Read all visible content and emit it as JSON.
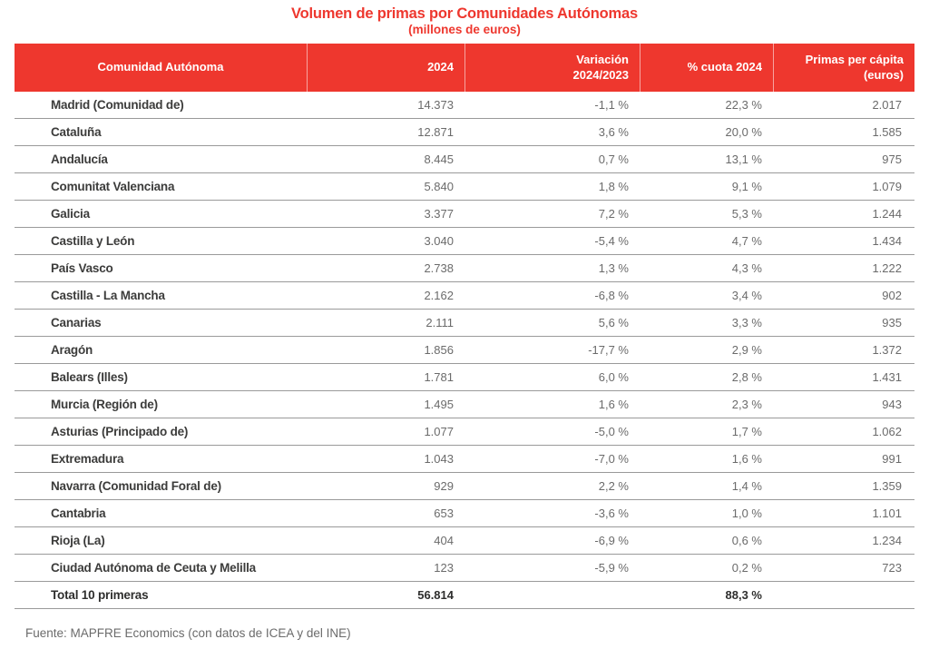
{
  "title": "Volumen de primas por Comunidades Autónomas",
  "subtitle": "(millones de euros)",
  "colors": {
    "accent_red": "#ee372e",
    "row_line": "#9a9a9a",
    "region_text": "#3c3c3b",
    "value_text": "#6b6b6b"
  },
  "header": {
    "col_region": "Comunidad Autónoma",
    "col_2024": "2024",
    "col_variation_l1": "Variación",
    "col_variation_l2": "2024/2023",
    "col_share": "% cuota 2024",
    "col_percapita_l1": "Primas per cápita",
    "col_percapita_l2": "(euros)"
  },
  "footer": "Fuente: MAPFRE Economics (con datos de ICEA y del INE)",
  "chart_data": {
    "type": "table",
    "title": "Volumen de primas por Comunidades Autónomas",
    "subtitle": "(millones de euros)",
    "columns": [
      "Comunidad Autónoma",
      "2024",
      "Variación 2024/2023",
      "% cuota 2024",
      "Primas per cápita (euros)"
    ],
    "rows": [
      {
        "region": "Madrid (Comunidad de)",
        "premiums_2024": "14.373",
        "variation": "-1,1 %",
        "share": "22,3 %",
        "per_capita": "2.017"
      },
      {
        "region": "Cataluña",
        "premiums_2024": "12.871",
        "variation": "3,6 %",
        "share": "20,0 %",
        "per_capita": "1.585"
      },
      {
        "region": "Andalucía",
        "premiums_2024": "8.445",
        "variation": "0,7 %",
        "share": "13,1 %",
        "per_capita": "975"
      },
      {
        "region": "Comunitat Valenciana",
        "premiums_2024": "5.840",
        "variation": "1,8 %",
        "share": "9,1 %",
        "per_capita": "1.079"
      },
      {
        "region": "Galicia",
        "premiums_2024": "3.377",
        "variation": "7,2 %",
        "share": "5,3 %",
        "per_capita": "1.244"
      },
      {
        "region": "Castilla y León",
        "premiums_2024": "3.040",
        "variation": "-5,4 %",
        "share": "4,7 %",
        "per_capita": "1.434"
      },
      {
        "region": "País Vasco",
        "premiums_2024": "2.738",
        "variation": "1,3 %",
        "share": "4,3 %",
        "per_capita": "1.222"
      },
      {
        "region": "Castilla - La Mancha",
        "premiums_2024": "2.162",
        "variation": "-6,8 %",
        "share": "3,4 %",
        "per_capita": "902"
      },
      {
        "region": "Canarias",
        "premiums_2024": "2.111",
        "variation": "5,6 %",
        "share": "3,3 %",
        "per_capita": "935"
      },
      {
        "region": "Aragón",
        "premiums_2024": "1.856",
        "variation": "-17,7 %",
        "share": "2,9 %",
        "per_capita": "1.372"
      },
      {
        "region": "Balears (Illes)",
        "premiums_2024": "1.781",
        "variation": "6,0 %",
        "share": "2,8 %",
        "per_capita": "1.431"
      },
      {
        "region": "Murcia (Región de)",
        "premiums_2024": "1.495",
        "variation": "1,6 %",
        "share": "2,3 %",
        "per_capita": "943"
      },
      {
        "region": "Asturias (Principado de)",
        "premiums_2024": "1.077",
        "variation": "-5,0 %",
        "share": "1,7 %",
        "per_capita": "1.062"
      },
      {
        "region": "Extremadura",
        "premiums_2024": "1.043",
        "variation": "-7,0 %",
        "share": "1,6 %",
        "per_capita": "991"
      },
      {
        "region": "Navarra (Comunidad Foral de)",
        "premiums_2024": "929",
        "variation": "2,2 %",
        "share": "1,4 %",
        "per_capita": "1.359"
      },
      {
        "region": "Cantabria",
        "premiums_2024": "653",
        "variation": "-3,6 %",
        "share": "1,0 %",
        "per_capita": "1.101"
      },
      {
        "region": "Rioja (La)",
        "premiums_2024": "404",
        "variation": "-6,9 %",
        "share": "0,6 %",
        "per_capita": "1.234"
      },
      {
        "region": "Ciudad Autónoma de Ceuta y Melilla",
        "premiums_2024": "123",
        "variation": "-5,9 %",
        "share": "0,2 %",
        "per_capita": "723"
      }
    ],
    "total": {
      "region": "Total 10 primeras",
      "premiums_2024": "56.814",
      "variation": "",
      "share": "88,3 %",
      "per_capita": ""
    }
  }
}
